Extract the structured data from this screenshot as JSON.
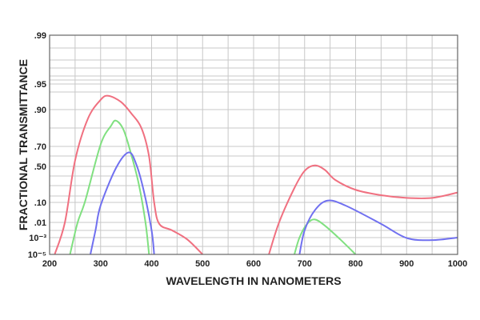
{
  "chart_data": {
    "type": "line",
    "title": "",
    "xlabel": "WAVELENGTH IN NANOMETERS",
    "ylabel": "FRACTIONAL TRANSMITTANCE",
    "xlim": [
      200,
      1000
    ],
    "x_ticks": [
      "200",
      "300",
      "400",
      "500",
      "600",
      "700",
      "800",
      "900",
      "1000"
    ],
    "y_scale": "nonlinear (probability-style)",
    "y_ticks": [
      ".99",
      ".95",
      ".90",
      ".70",
      ".50",
      ".10",
      ".01",
      "10⁻³",
      "10⁻⁵"
    ],
    "y_tick_values": [
      0.99,
      0.95,
      0.9,
      0.7,
      0.5,
      0.1,
      0.01,
      0.001,
      1e-05
    ],
    "grid": true,
    "legend": "none",
    "series": [
      {
        "color": "#f07080",
        "segments": [
          [
            [
              210,
              1e-05
            ],
            [
              230,
              0.01
            ],
            [
              250,
              0.56
            ],
            [
              275,
              0.85
            ],
            [
              300,
              0.919
            ],
            [
              315,
              0.927
            ],
            [
              340,
              0.915
            ],
            [
              360,
              0.88
            ],
            [
              380,
              0.8
            ],
            [
              395,
              0.6
            ],
            [
              405,
              0.1
            ],
            [
              415,
              0.008
            ],
            [
              440,
              0.003
            ],
            [
              470,
              0.0006
            ],
            [
              500,
              1e-05
            ]
          ],
          [
            [
              630,
              1e-05
            ],
            [
              650,
              0.01
            ],
            [
              680,
              0.26
            ],
            [
              700,
              0.45
            ],
            [
              720,
              0.51
            ],
            [
              740,
              0.46
            ],
            [
              760,
              0.35
            ],
            [
              800,
              0.24
            ],
            [
              850,
              0.18
            ],
            [
              900,
              0.15
            ],
            [
              950,
              0.15
            ],
            [
              1000,
              0.21
            ]
          ]
        ]
      },
      {
        "color": "#80e080",
        "segments": [
          [
            [
              240,
              1e-05
            ],
            [
              255,
              0.01
            ],
            [
              270,
              0.12
            ],
            [
              300,
              0.71
            ],
            [
              320,
              0.81
            ],
            [
              330,
              0.84
            ],
            [
              345,
              0.79
            ],
            [
              360,
              0.62
            ],
            [
              375,
              0.3
            ],
            [
              388,
              0.01
            ],
            [
              395,
              1e-05
            ]
          ],
          [
            [
              680,
              1e-05
            ],
            [
              690,
              0.001
            ],
            [
              705,
              0.008
            ],
            [
              720,
              0.014
            ],
            [
              740,
              0.006
            ],
            [
              770,
              0.0006
            ],
            [
              800,
              1e-05
            ]
          ]
        ]
      },
      {
        "color": "#7070f0",
        "segments": [
          [
            [
              280,
              1e-05
            ],
            [
              290,
              0.003
            ],
            [
              300,
              0.07
            ],
            [
              330,
              0.48
            ],
            [
              355,
              0.64
            ],
            [
              370,
              0.52
            ],
            [
              385,
              0.22
            ],
            [
              400,
              0.003
            ],
            [
              405,
              1e-05
            ]
          ],
          [
            [
              690,
              1e-05
            ],
            [
              700,
              0.003
            ],
            [
              720,
              0.04
            ],
            [
              745,
              0.12
            ],
            [
              780,
              0.07
            ],
            [
              850,
              0.008
            ],
            [
              900,
              0.0009
            ],
            [
              950,
              0.0005
            ],
            [
              1000,
              0.001
            ]
          ]
        ]
      }
    ]
  }
}
